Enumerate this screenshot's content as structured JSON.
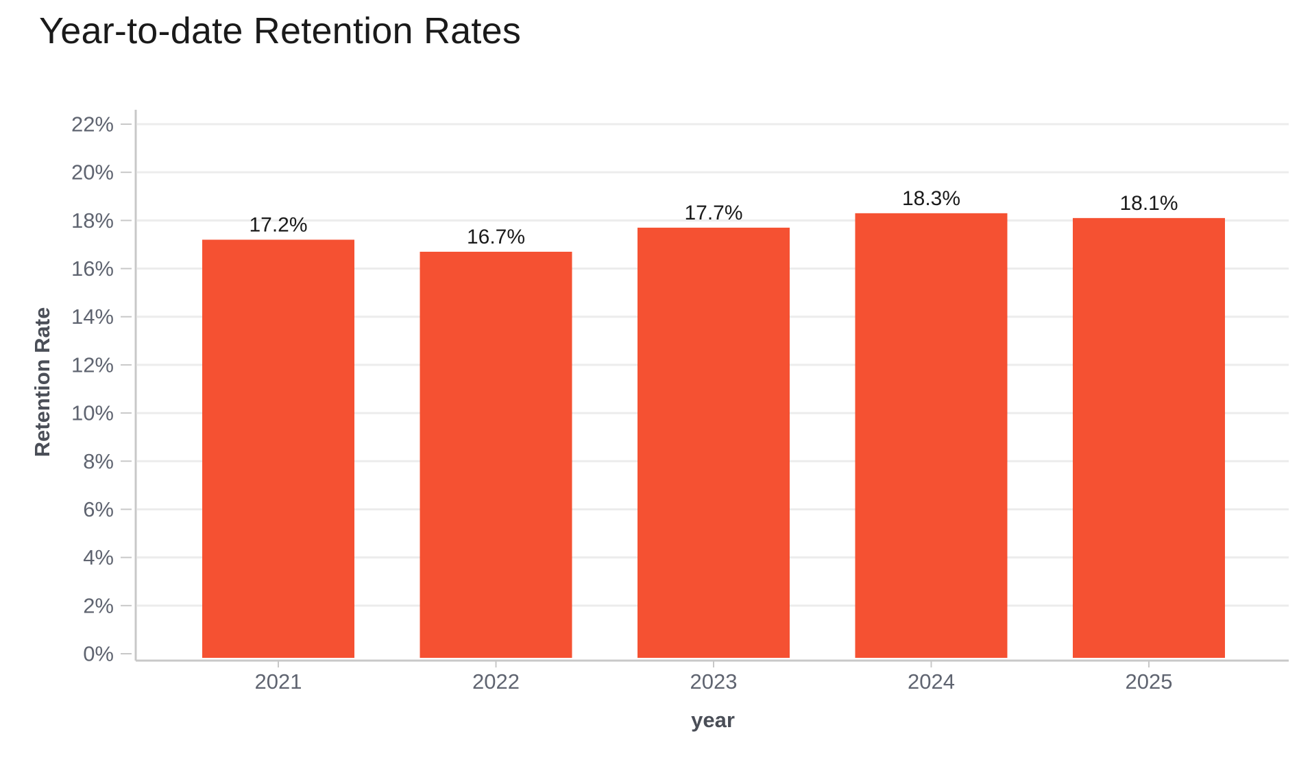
{
  "chart_data": {
    "type": "bar",
    "title": "Year-to-date Retention Rates",
    "xlabel": "year",
    "ylabel": "Retention Rate",
    "categories": [
      "2021",
      "2022",
      "2023",
      "2024",
      "2025"
    ],
    "values": [
      17.2,
      16.7,
      17.7,
      18.3,
      18.1
    ],
    "value_labels": [
      "17.2%",
      "16.7%",
      "17.7%",
      "18.3%",
      "18.1%"
    ],
    "ylim": [
      0,
      22
    ],
    "yticks": [
      0,
      2,
      4,
      6,
      8,
      10,
      12,
      14,
      16,
      18,
      20,
      22
    ],
    "ytick_labels": [
      "0%",
      "2%",
      "4%",
      "6%",
      "8%",
      "10%",
      "12%",
      "14%",
      "16%",
      "18%",
      "20%",
      "22%"
    ],
    "grid": true,
    "legend": "none",
    "colors": {
      "bar": "#f55132",
      "grid": "#ececec",
      "axis": "#c8c8c8"
    }
  }
}
